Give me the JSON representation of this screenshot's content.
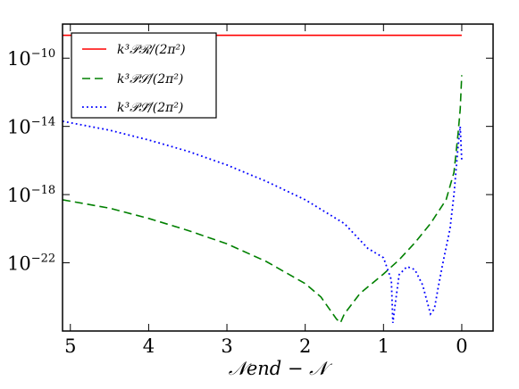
{
  "chart_data": {
    "type": "line",
    "title": "",
    "xlabel": "𝒩end − 𝒩",
    "ylabel": "",
    "xlim": [
      5.1,
      -0.4
    ],
    "ylim": [
      1e-26,
      1e-08
    ],
    "y_scale": "log",
    "x_reversed": true,
    "x_ticks": [
      {
        "value": 5,
        "label": "5"
      },
      {
        "value": 4,
        "label": "4"
      },
      {
        "value": 3,
        "label": "3"
      },
      {
        "value": 2,
        "label": "2"
      },
      {
        "value": 1,
        "label": "1"
      },
      {
        "value": 0,
        "label": "0"
      }
    ],
    "y_ticks": [
      {
        "value": 1e-10,
        "base": "10",
        "exp": "−10"
      },
      {
        "value": 1e-14,
        "base": "10",
        "exp": "−14"
      },
      {
        "value": 1e-18,
        "base": "10",
        "exp": "−18"
      },
      {
        "value": 1e-22,
        "base": "10",
        "exp": "−22"
      }
    ],
    "legend_position": "top-left",
    "series": [
      {
        "name": "k³𝒫ℛ/(2π²)",
        "color": "#ff0000",
        "style": "solid",
        "x": [
          5.1,
          4,
          3,
          2,
          1,
          0
        ],
        "y": [
          2.2e-09,
          2.2e-09,
          2.2e-09,
          2.2e-09,
          2.2e-09,
          2.2e-09
        ]
      },
      {
        "name": "k³𝒫𝒮/(2π²)",
        "color": "#008000",
        "style": "dashed",
        "x": [
          5.1,
          4.5,
          4.0,
          3.5,
          3.0,
          2.5,
          2.0,
          1.8,
          1.6,
          1.55,
          1.5,
          1.3,
          1.0,
          0.8,
          0.6,
          0.4,
          0.2,
          0.1,
          0.05,
          0.02,
          0.0
        ],
        "y": [
          5e-19,
          1.6e-19,
          4e-20,
          8e-21,
          1.3e-21,
          1.2e-22,
          6e-24,
          1e-24,
          5e-26,
          3e-26,
          1e-25,
          1.6e-24,
          2.2e-23,
          1.5e-22,
          1.5e-21,
          2e-20,
          5e-19,
          2e-17,
          3e-15,
          1e-13,
          1e-11
        ]
      },
      {
        "name": "k³𝒫𝒮̃/(2π²)",
        "color": "#0000ff",
        "style": "dotted",
        "x": [
          5.1,
          4.5,
          4.0,
          3.5,
          3.0,
          2.5,
          2.0,
          1.5,
          1.2,
          1.0,
          0.9,
          0.88,
          0.85,
          0.8,
          0.7,
          0.6,
          0.5,
          0.4,
          0.35,
          0.3,
          0.25,
          0.2,
          0.15,
          0.1,
          0.05,
          0.02,
          0.0
        ],
        "y": [
          2e-14,
          6e-15,
          1.6e-15,
          3.5e-16,
          5.5e-17,
          6e-18,
          5e-19,
          2e-20,
          7e-22,
          2e-22,
          1e-23,
          3e-26,
          4e-25,
          2e-23,
          6e-23,
          4e-23,
          5e-24,
          1e-25,
          2e-25,
          4e-24,
          6e-23,
          8e-22,
          1e-20,
          1e-18,
          5e-16,
          1e-14,
          1e-16
        ]
      }
    ]
  }
}
